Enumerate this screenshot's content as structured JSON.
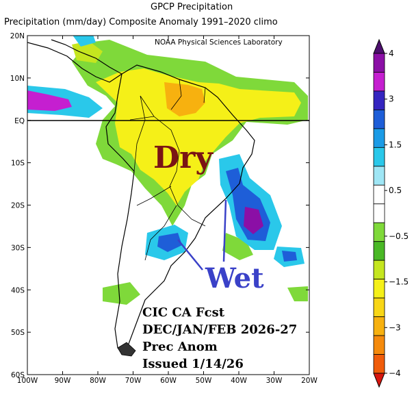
{
  "title": "GPCP Precipitation",
  "subtitle": "Precipitation (mm/day) Composite Anomaly 1991–2020 climo",
  "lab": "NOAA Physical Sciences Laboratory",
  "lat_ticks": [
    "20N",
    "10N",
    "EQ",
    "10S",
    "20S",
    "30S",
    "40S",
    "50S",
    "60S"
  ],
  "lon_ticks": [
    "100W",
    "90W",
    "80W",
    "70W",
    "60W",
    "50W",
    "40W",
    "30W",
    "20W"
  ],
  "colorbar": {
    "labels": [
      "4",
      "3",
      "1.5",
      "0.5",
      "−0.5",
      "−1.5",
      "−3",
      "−4"
    ],
    "colors": [
      "#4d0f6e",
      "#8b0fa6",
      "#c51fd0",
      "#3525c0",
      "#1e5ed8",
      "#1b9be6",
      "#2ac8ea",
      "#9fe6f5",
      "#ffffff",
      "#ffffff",
      "#7fd93a",
      "#49b825",
      "#c5e61f",
      "#f5f018",
      "#f8d616",
      "#f7b10f",
      "#f58a0c",
      "#f05c0a",
      "#d8160e"
    ]
  },
  "map": {
    "lon_min": -100,
    "lon_max": -20,
    "lat_min": -60,
    "lat_max": 20
  },
  "annotations": {
    "dry": "Dry",
    "wet": "Wet",
    "forecast": [
      "CIC CA Fcst",
      "DEC/JAN/FEB 2026-27",
      "Prec Anom",
      "Issued 1/14/26"
    ]
  }
}
